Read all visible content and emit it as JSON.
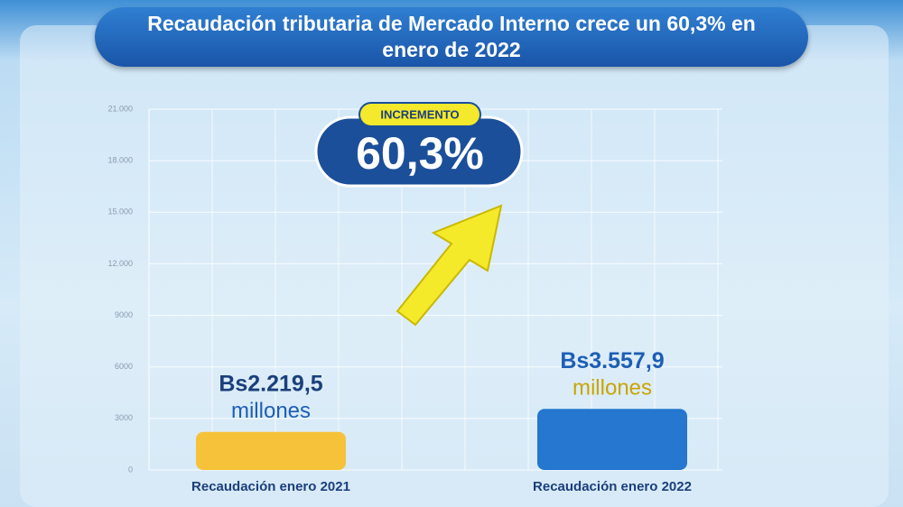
{
  "chart_data": {
    "type": "bar",
    "title": "Recaudación tributaria de Mercado Interno crece un 60,3% en enero de 2022",
    "categories": [
      "Recaudación enero 2021",
      "Recaudación enero 2022"
    ],
    "values": [
      2219.5,
      3557.9
    ],
    "value_labels": [
      "Bs2.219,5",
      "Bs3.557,9"
    ],
    "value_unit": "millones",
    "colors": [
      "#f6c23a",
      "#2577d0"
    ],
    "ylim": [
      0,
      21000
    ],
    "yticks": [
      0,
      3000,
      6000,
      9000,
      {
        "value": 12000,
        "label": "12.000"
      },
      {
        "value": 15000,
        "label": "15.000"
      },
      {
        "value": 18000,
        "label": "18.000"
      },
      {
        "value": 21000,
        "label": "21.000"
      }
    ],
    "grid": true,
    "annotation": {
      "title": "INCREMENTO",
      "text": "60,3%"
    }
  }
}
